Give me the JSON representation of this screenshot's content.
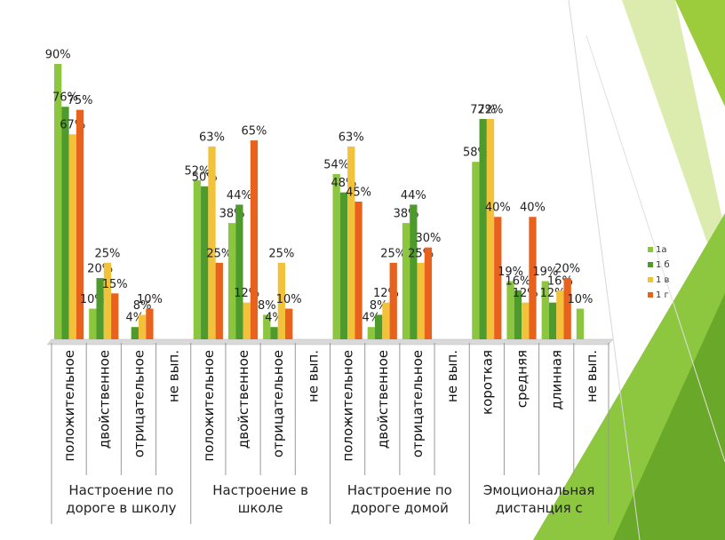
{
  "chart_data": {
    "type": "bar",
    "groups": [
      {
        "label": "Настроение по дороге в школу",
        "categories": [
          "положительное",
          "двойственное",
          "отрицательное",
          "не вып."
        ]
      },
      {
        "label": "Настроение в школе",
        "categories": [
          "положительное",
          "двойственное",
          "отрицательное",
          "не вып."
        ]
      },
      {
        "label": "Настроение по дороге домой",
        "categories": [
          "положительное",
          "двойственное",
          "отрицательное",
          "не вып."
        ]
      },
      {
        "label": "Эмоциональная дистанция с",
        "categories": [
          "короткая",
          "средняя",
          "длинная",
          "не вып."
        ]
      }
    ],
    "series": [
      {
        "name": "1а",
        "color": "#8cc63e",
        "values": [
          90,
          10,
          null,
          null,
          52,
          38,
          8,
          null,
          54,
          4,
          38,
          null,
          58,
          19,
          19,
          10
        ],
        "value_labels": [
          "90%",
          "10%",
          null,
          null,
          "52%",
          "38%",
          "8%",
          null,
          "54%",
          "4%",
          "38%",
          null,
          "58%",
          "19%",
          "19%",
          "10%"
        ]
      },
      {
        "name": "1 б",
        "color": "#4e9a2c",
        "values": [
          76,
          20,
          4,
          null,
          50,
          44,
          4,
          null,
          48,
          8,
          44,
          null,
          72,
          16,
          12,
          null
        ],
        "value_labels": [
          "76%",
          "20%",
          "4%",
          null,
          "50%",
          "44%",
          "4%",
          null,
          "48%",
          "8%",
          "44%",
          null,
          "72%",
          "16%",
          "12%",
          null
        ]
      },
      {
        "name": "1 в",
        "color": "#f2c23a",
        "values": [
          67,
          25,
          8,
          null,
          63,
          12,
          25,
          null,
          63,
          12,
          25,
          null,
          72,
          12,
          16,
          null
        ],
        "value_labels": [
          "67%",
          "25%",
          "8%",
          null,
          "63%",
          "12%",
          "25%",
          null,
          "63%",
          "12%",
          "25%",
          null,
          "72%",
          "12%",
          "16%",
          null
        ]
      },
      {
        "name": "1 г",
        "color": "#e8621e",
        "values": [
          75,
          15,
          10,
          null,
          25,
          65,
          10,
          null,
          45,
          25,
          30,
          null,
          40,
          40,
          20,
          null
        ],
        "value_labels": [
          "75%",
          "15%",
          "10%",
          null,
          "25%",
          "65%",
          "10%",
          null,
          "45%",
          "25%",
          "30%",
          null,
          "40%",
          "40%",
          "20%",
          null
        ]
      }
    ]
  }
}
